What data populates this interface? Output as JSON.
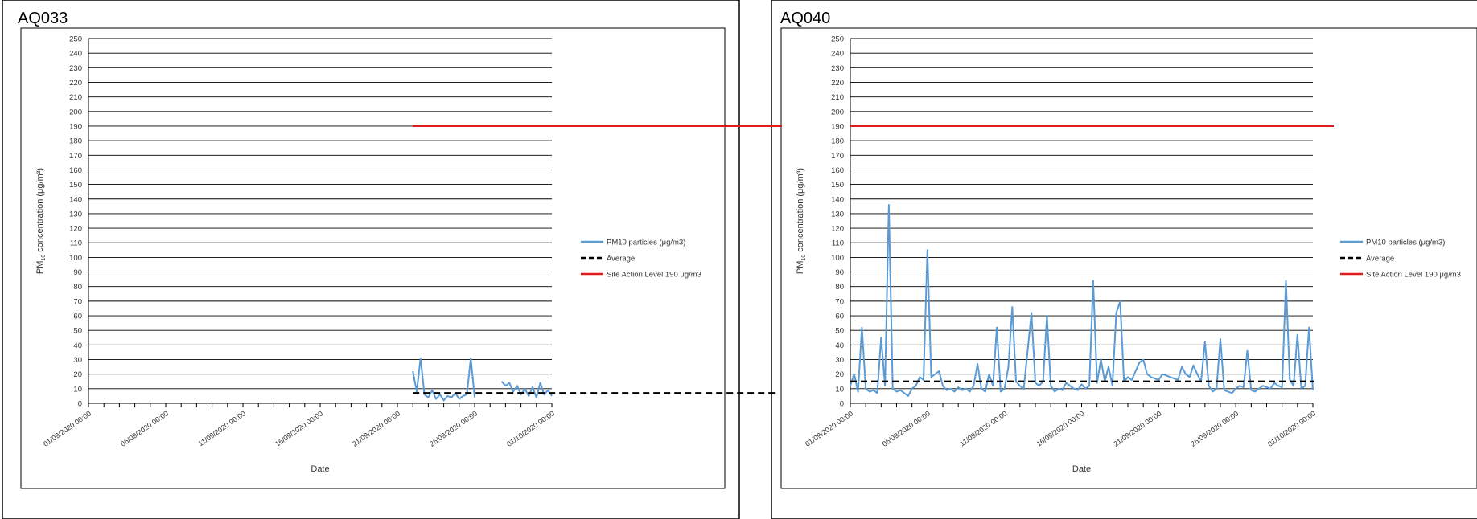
{
  "panels": [
    {
      "id": "AQ033",
      "label": "AQ033"
    },
    {
      "id": "AQ040",
      "label": "AQ040"
    }
  ],
  "chart_data": [
    {
      "type": "line",
      "title": "AQ033",
      "xlabel": "Date",
      "ylabel_main": "PM",
      "ylabel_sub": "10",
      "ylabel_rest": " concentration (μg/m³)",
      "ylim": [
        0,
        250
      ],
      "yticks": [
        0,
        10,
        20,
        30,
        40,
        50,
        60,
        70,
        80,
        90,
        100,
        110,
        120,
        130,
        140,
        150,
        160,
        170,
        180,
        190,
        200,
        210,
        220,
        230,
        240,
        250
      ],
      "x_start": "01/09/2020 00:00",
      "x_end": "01/10/2020 00:00",
      "xtick_labels": [
        "01/09/2020 00:00",
        "06/09/2020 00:00",
        "11/09/2020 00:00",
        "16/09/2020 00:00",
        "21/09/2020 00:00",
        "26/09/2020 00:00",
        "01/10/2020 00:00"
      ],
      "grid": true,
      "legend_position": "right",
      "series": [
        {
          "name": "PM10 particles (μg/m3)",
          "color": "#5b9bd5",
          "style": "solid",
          "x": [
            "22/09/2020 00:00",
            "22/09/2020 06:00",
            "22/09/2020 12:00",
            "22/09/2020 18:00",
            "23/09/2020 00:00",
            "23/09/2020 06:00",
            "23/09/2020 12:00",
            "23/09/2020 18:00",
            "24/09/2020 00:00",
            "24/09/2020 06:00",
            "24/09/2020 12:00",
            "24/09/2020 18:00",
            "25/09/2020 00:00",
            "25/09/2020 06:00",
            "25/09/2020 12:00",
            "25/09/2020 18:00",
            "26/09/2020 00:00",
            null,
            "27/09/2020 18:00",
            "28/09/2020 00:00",
            "28/09/2020 06:00",
            "28/09/2020 12:00",
            "28/09/2020 18:00",
            "29/09/2020 00:00",
            "29/09/2020 06:00",
            "29/09/2020 12:00",
            "29/09/2020 18:00",
            "30/09/2020 00:00",
            "30/09/2020 06:00",
            "30/09/2020 12:00",
            "30/09/2020 18:00",
            "01/10/2020 00:00"
          ],
          "values": [
            22,
            8,
            31,
            6,
            4,
            9,
            3,
            6,
            2,
            5,
            4,
            7,
            3,
            5,
            6,
            31,
            4,
            null,
            15,
            12,
            14,
            8,
            12,
            6,
            10,
            5,
            11,
            4,
            14,
            6,
            9,
            5
          ]
        },
        {
          "name": "Average",
          "color": "#000000",
          "style": "dashed",
          "x": [
            "22/09/2020 00:00",
            "01/10/2020 00:00"
          ],
          "values": [
            7,
            7
          ]
        },
        {
          "name": "Site Action Level 190 μg/m3",
          "color": "#e31a1c",
          "style": "solid",
          "x": [
            "22/09/2020 00:00",
            "01/10/2020 00:00"
          ],
          "values": [
            190,
            190
          ]
        }
      ]
    },
    {
      "type": "line",
      "title": "AQ040",
      "xlabel": "Date",
      "ylabel_main": "PM",
      "ylabel_sub": "10",
      "ylabel_rest": " concentration (μg/m³)",
      "ylim": [
        0,
        250
      ],
      "yticks": [
        0,
        10,
        20,
        30,
        40,
        50,
        60,
        70,
        80,
        90,
        100,
        110,
        120,
        130,
        140,
        150,
        160,
        170,
        180,
        190,
        200,
        210,
        220,
        230,
        240,
        250
      ],
      "x_start": "01/09/2020 00:00",
      "x_end": "01/10/2020 00:00",
      "xtick_labels": [
        "01/09/2020 00:00",
        "06/09/2020 00:00",
        "11/09/2020 00:00",
        "16/09/2020 00:00",
        "21/09/2020 00:00",
        "26/09/2020 00:00",
        "01/10/2020 00:00"
      ],
      "grid": true,
      "legend_position": "right",
      "series": [
        {
          "name": "PM10 particles (μg/m3)",
          "color": "#5b9bd5",
          "style": "solid",
          "x": [
            "01/09/2020 00:00",
            "01/09/2020 06:00",
            "01/09/2020 12:00",
            "01/09/2020 18:00",
            "02/09/2020 00:00",
            "02/09/2020 06:00",
            "02/09/2020 12:00",
            "02/09/2020 18:00",
            "03/09/2020 00:00",
            "03/09/2020 06:00",
            "03/09/2020 12:00",
            "03/09/2020 18:00",
            "04/09/2020 00:00",
            "04/09/2020 06:00",
            "04/09/2020 12:00",
            "04/09/2020 18:00",
            "05/09/2020 00:00",
            "05/09/2020 06:00",
            "05/09/2020 12:00",
            "05/09/2020 18:00",
            "06/09/2020 00:00",
            "06/09/2020 06:00",
            "06/09/2020 12:00",
            "06/09/2020 18:00",
            "07/09/2020 00:00",
            "07/09/2020 06:00",
            "07/09/2020 12:00",
            "07/09/2020 18:00",
            "08/09/2020 00:00",
            "08/09/2020 06:00",
            "08/09/2020 12:00",
            "08/09/2020 18:00",
            "09/09/2020 00:00",
            "09/09/2020 06:00",
            "09/09/2020 12:00",
            "09/09/2020 18:00",
            "10/09/2020 00:00",
            "10/09/2020 06:00",
            "10/09/2020 12:00",
            "10/09/2020 18:00",
            "11/09/2020 00:00",
            "11/09/2020 06:00",
            "11/09/2020 12:00",
            "11/09/2020 18:00",
            "12/09/2020 00:00",
            "12/09/2020 06:00",
            "12/09/2020 12:00",
            "12/09/2020 18:00",
            "13/09/2020 00:00",
            "13/09/2020 06:00",
            "13/09/2020 12:00",
            "13/09/2020 18:00",
            "14/09/2020 00:00",
            "14/09/2020 06:00",
            "14/09/2020 12:00",
            "14/09/2020 18:00",
            "15/09/2020 00:00",
            "15/09/2020 06:00",
            "15/09/2020 12:00",
            "15/09/2020 18:00",
            "16/09/2020 00:00",
            "16/09/2020 06:00",
            "16/09/2020 12:00",
            "16/09/2020 18:00",
            "17/09/2020 00:00",
            "17/09/2020 06:00",
            "17/09/2020 12:00",
            "17/09/2020 18:00",
            "18/09/2020 00:00",
            "18/09/2020 06:00",
            "18/09/2020 12:00",
            "18/09/2020 18:00",
            "19/09/2020 00:00",
            "19/09/2020 06:00",
            "19/09/2020 12:00",
            "19/09/2020 18:00",
            "20/09/2020 00:00",
            "20/09/2020 06:00",
            "20/09/2020 12:00",
            "20/09/2020 18:00",
            "21/09/2020 00:00",
            "21/09/2020 06:00",
            "21/09/2020 12:00",
            "21/09/2020 18:00",
            "22/09/2020 00:00",
            "22/09/2020 06:00",
            "22/09/2020 12:00",
            "22/09/2020 18:00",
            "23/09/2020 00:00",
            "23/09/2020 06:00",
            "23/09/2020 12:00",
            "23/09/2020 18:00",
            "24/09/2020 00:00",
            "24/09/2020 06:00",
            "24/09/2020 12:00",
            "24/09/2020 18:00",
            "25/09/2020 00:00",
            "25/09/2020 06:00",
            "25/09/2020 12:00",
            "25/09/2020 18:00",
            "26/09/2020 00:00",
            "26/09/2020 06:00",
            "26/09/2020 12:00",
            "26/09/2020 18:00",
            "27/09/2020 00:00",
            "27/09/2020 06:00",
            "27/09/2020 12:00",
            "27/09/2020 18:00",
            "28/09/2020 00:00",
            "28/09/2020 06:00",
            "28/09/2020 12:00",
            "28/09/2020 18:00",
            "29/09/2020 00:00",
            "29/09/2020 06:00",
            "29/09/2020 12:00",
            "29/09/2020 18:00",
            "30/09/2020 00:00",
            "30/09/2020 06:00",
            "30/09/2020 12:00",
            "30/09/2020 18:00",
            "01/10/2020 00:00"
          ],
          "values": [
            12,
            20,
            8,
            52,
            10,
            8,
            9,
            7,
            45,
            12,
            136,
            10,
            8,
            9,
            7,
            5,
            10,
            12,
            18,
            16,
            105,
            18,
            20,
            22,
            12,
            9,
            10,
            8,
            11,
            9,
            10,
            8,
            12,
            27,
            10,
            8,
            20,
            12,
            52,
            8,
            10,
            25,
            66,
            15,
            12,
            10,
            36,
            62,
            14,
            12,
            15,
            60,
            12,
            8,
            10,
            9,
            14,
            12,
            10,
            9,
            13,
            10,
            12,
            84,
            14,
            30,
            15,
            25,
            12,
            62,
            70,
            15,
            18,
            16,
            22,
            28,
            30,
            20,
            18,
            17,
            16,
            20,
            19,
            18,
            17,
            16,
            25,
            20,
            18,
            26,
            20,
            15,
            42,
            12,
            8,
            10,
            44,
            9,
            8,
            7,
            10,
            12,
            11,
            36,
            9,
            8,
            10,
            12,
            11,
            10,
            14,
            12,
            11,
            84,
            16,
            12,
            47,
            10,
            12,
            52,
            9
          ]
        },
        {
          "name": "Average",
          "color": "#000000",
          "style": "dashed",
          "x": [
            "01/09/2020 00:00",
            "01/10/2020 00:00"
          ],
          "values": [
            15,
            15
          ]
        },
        {
          "name": "Site Action Level 190 μg/m3",
          "color": "#e31a1c",
          "style": "solid",
          "x": [
            "01/09/2020 00:00",
            "01/10/2020 00:00"
          ],
          "values": [
            190,
            190
          ]
        }
      ]
    }
  ]
}
